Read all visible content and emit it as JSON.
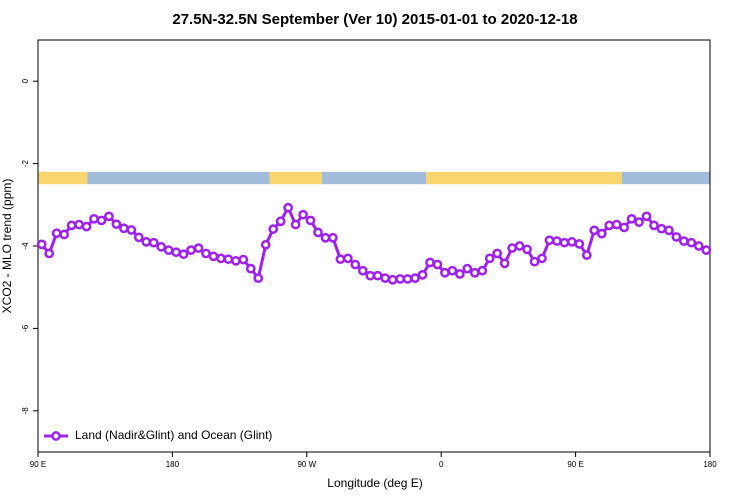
{
  "chart_data": {
    "type": "line",
    "title": "27.5N-32.5N September (Ver 10)   2015-01-01 to 2020-12-18",
    "x_label": "Longitude (deg E)",
    "y_label": "XCO2 - MLO trend (ppm)",
    "xlim": [
      90,
      540
    ],
    "ylim": [
      -9,
      1
    ],
    "xticks": [
      {
        "value": 90,
        "label": "90 E"
      },
      180,
      {
        "value": 270,
        "label": "90 W"
      },
      {
        "value": 360,
        "label": "0"
      },
      {
        "value": 450,
        "label": "90 E"
      },
      {
        "value": 540,
        "label": "180"
      }
    ],
    "yticks": [
      0,
      -2,
      -4,
      -6,
      -8
    ],
    "legend": "bottom-left",
    "band": {
      "y": [
        -2.2,
        -2.5
      ],
      "segments": [
        {
          "x": [
            90,
            123
          ],
          "color": "#f9d56e"
        },
        {
          "x": [
            123,
            245
          ],
          "color": "#a3bcd9"
        },
        {
          "x": [
            245,
            280
          ],
          "color": "#f9d56e"
        },
        {
          "x": [
            280,
            350
          ],
          "color": "#a3bcd9"
        },
        {
          "x": [
            350,
            481
          ],
          "color": "#f9d56e"
        },
        {
          "x": [
            481,
            540
          ],
          "color": "#a3bcd9"
        }
      ]
    },
    "x": [
      92.5,
      97.5,
      102.5,
      107.5,
      112.5,
      117.5,
      122.5,
      127.5,
      132.5,
      137.5,
      142.5,
      147.5,
      152.5,
      157.5,
      162.5,
      167.5,
      172.5,
      177.5,
      182.5,
      187.5,
      192.5,
      197.5,
      202.5,
      207.5,
      212.5,
      217.5,
      222.5,
      227.5,
      232.5,
      237.5,
      242.5,
      247.5,
      252.5,
      257.5,
      262.5,
      267.5,
      272.5,
      277.5,
      282.5,
      287.5,
      292.5,
      297.5,
      302.5,
      307.5,
      312.5,
      317.5,
      322.5,
      327.5,
      332.5,
      337.5,
      342.5,
      347.5,
      352.5,
      357.5,
      362.5,
      367.5,
      372.5,
      377.5,
      382.5,
      387.5,
      392.5,
      397.5,
      402.5,
      407.5,
      412.5,
      417.5,
      422.5,
      427.5,
      432.5,
      437.5,
      442.5,
      447.5,
      452.5,
      457.5,
      462.5,
      467.5,
      472.5,
      477.5,
      482.5,
      487.5,
      492.5,
      497.5,
      502.5,
      507.5,
      512.5,
      517.5,
      522.5,
      527.5,
      532.5,
      537.5
    ],
    "series": [
      {
        "name": "Land (Nadir&Glint) and Ocean (Glint)",
        "color": "#a020f0",
        "values": [
          -3.96,
          -4.18,
          -3.69,
          -3.72,
          -3.5,
          -3.48,
          -3.53,
          -3.34,
          -3.38,
          -3.28,
          -3.47,
          -3.57,
          -3.61,
          -3.79,
          -3.9,
          -3.92,
          -4.02,
          -4.1,
          -4.15,
          -4.2,
          -4.1,
          -4.05,
          -4.18,
          -4.25,
          -4.3,
          -4.32,
          -4.36,
          -4.33,
          -4.55,
          -4.78,
          -3.97,
          -3.59,
          -3.4,
          -3.07,
          -3.48,
          -3.24,
          -3.38,
          -3.67,
          -3.8,
          -3.8,
          -4.32,
          -4.3,
          -4.45,
          -4.6,
          -4.72,
          -4.72,
          -4.78,
          -4.82,
          -4.8,
          -4.8,
          -4.78,
          -4.7,
          -4.4,
          -4.45,
          -4.65,
          -4.6,
          -4.68,
          -4.55,
          -4.65,
          -4.6,
          -4.3,
          -4.18,
          -4.42,
          -4.05,
          -4.0,
          -4.08,
          -4.38,
          -4.3,
          -3.86,
          -3.88,
          -3.92,
          -3.9,
          -3.95,
          -4.22,
          -3.62,
          -3.7,
          -3.5,
          -3.48,
          -3.55,
          -3.34,
          -3.42,
          -3.28,
          -3.5,
          -3.58,
          -3.62,
          -3.78,
          -3.88,
          -3.92,
          -4.0,
          -4.1
        ]
      }
    ]
  }
}
